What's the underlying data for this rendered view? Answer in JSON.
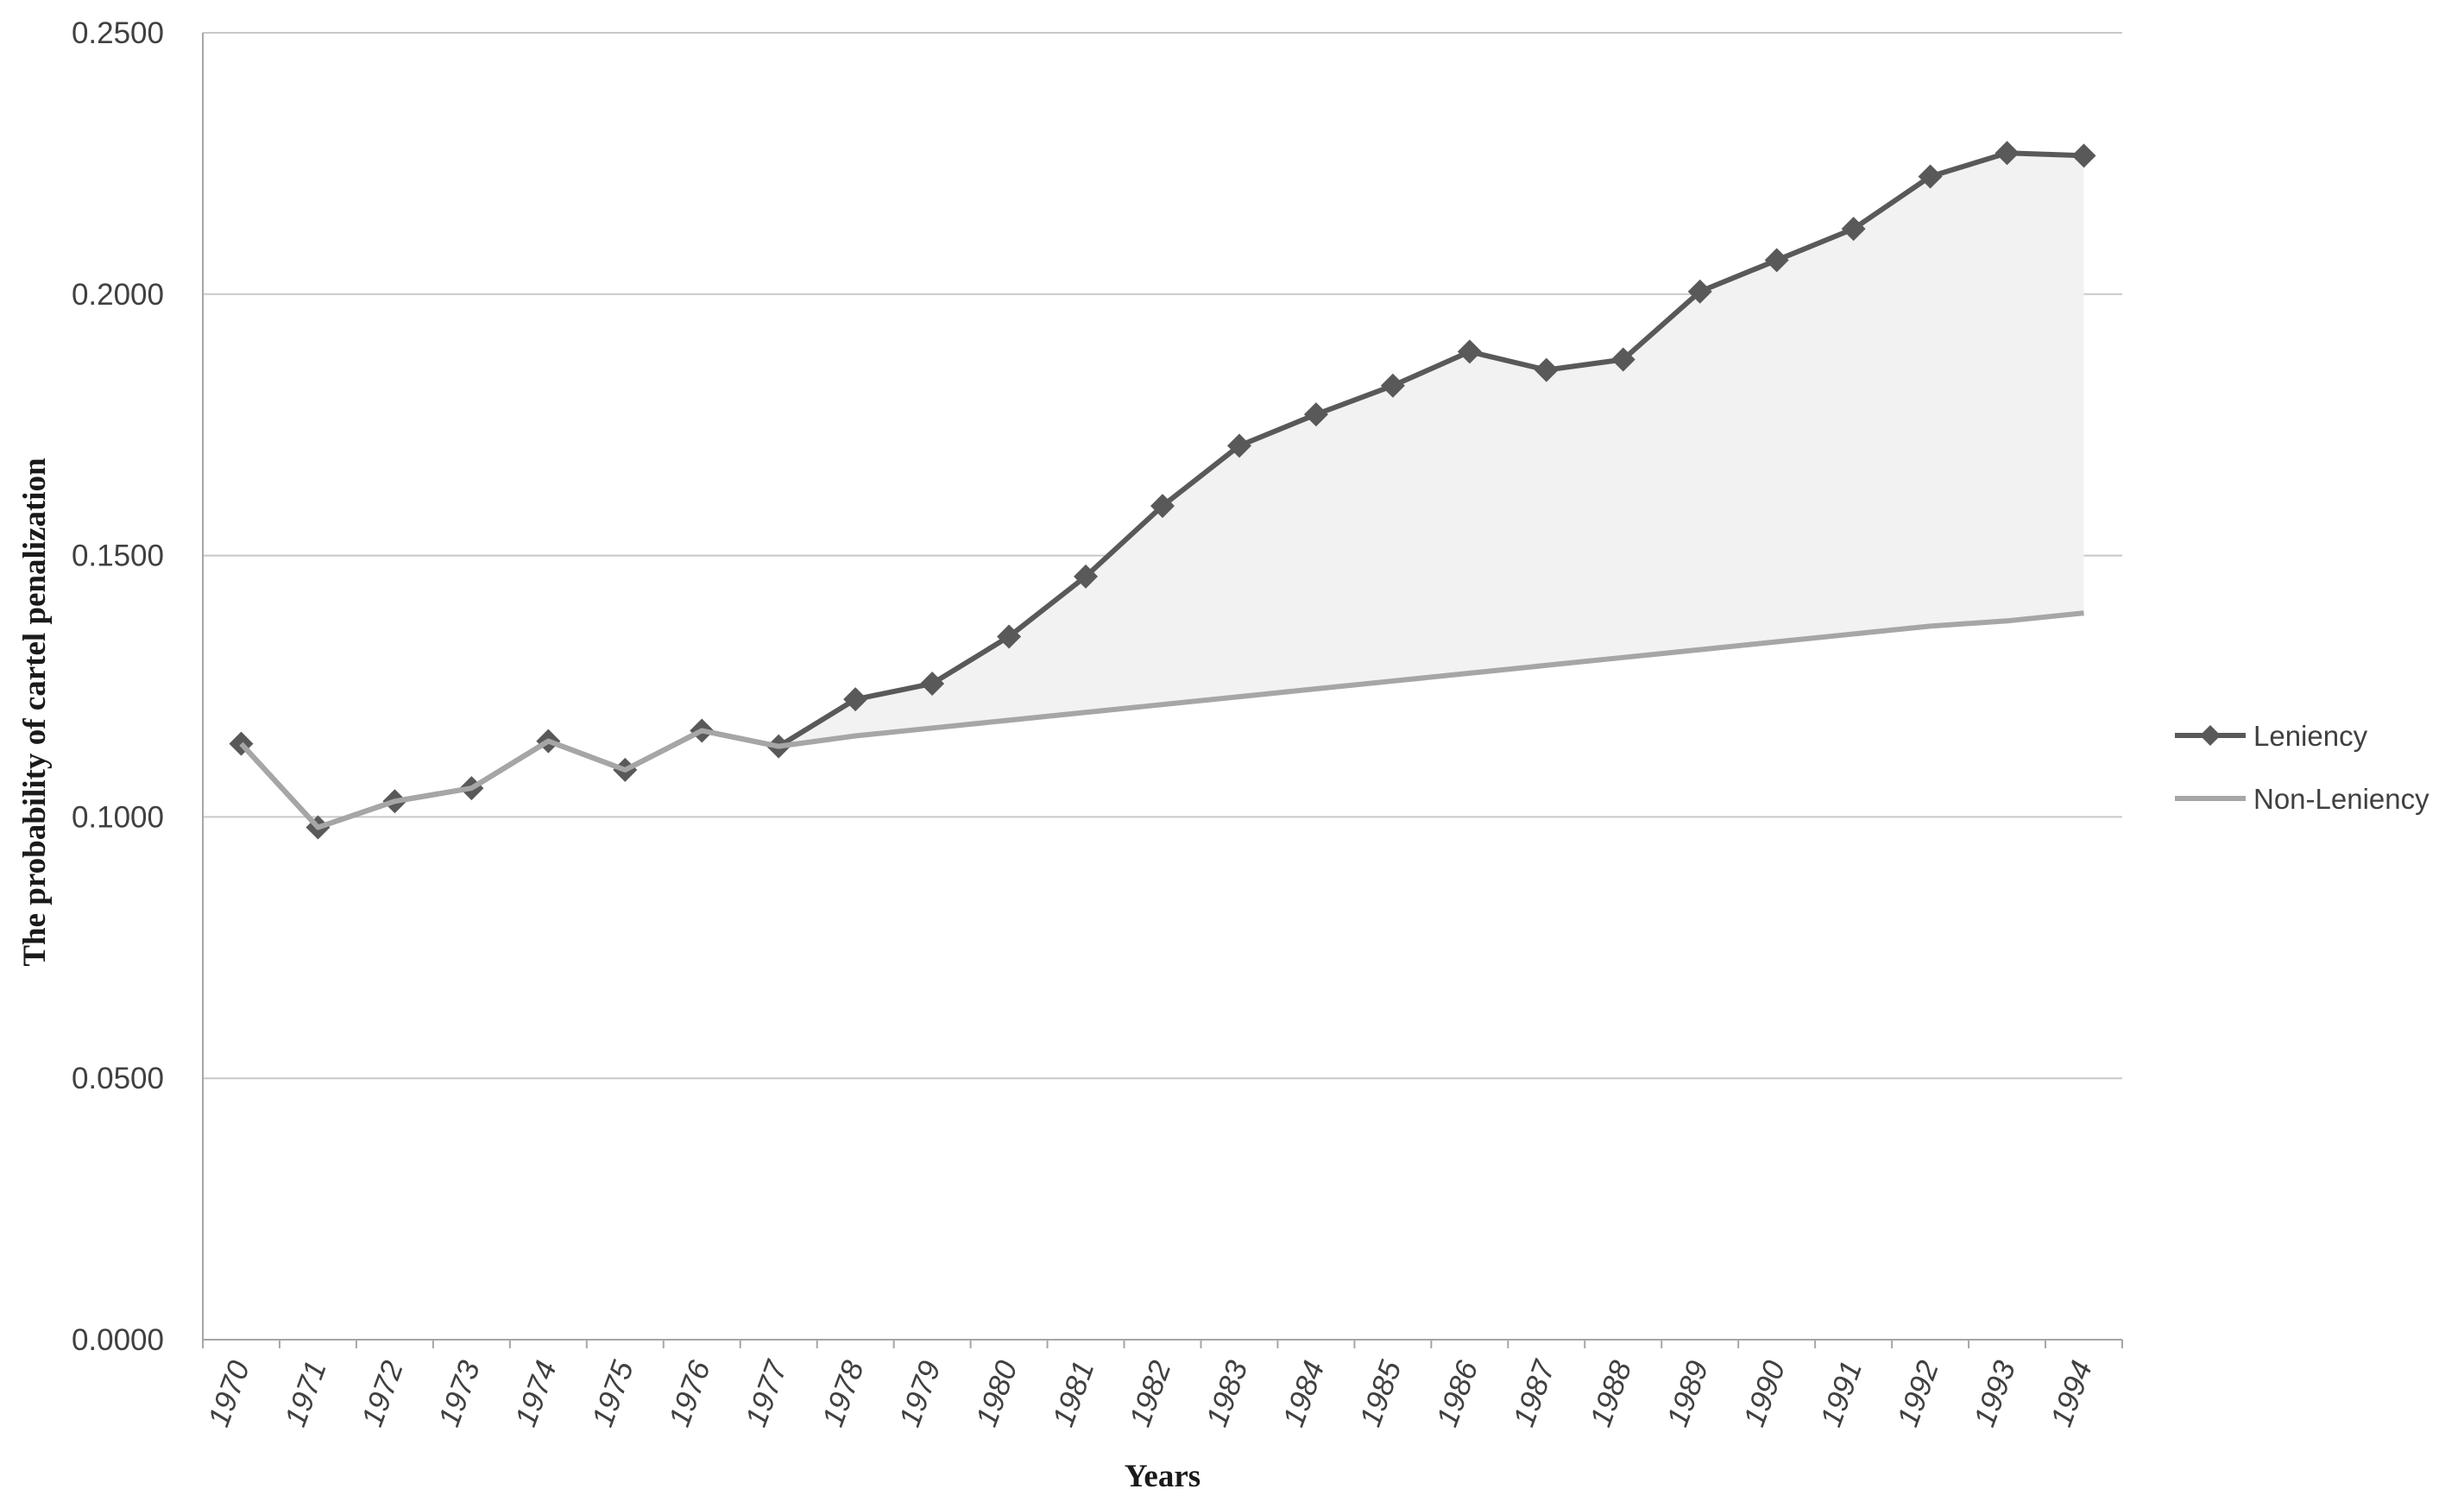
{
  "chart_data": {
    "type": "line",
    "title": "",
    "xlabel": "Years",
    "ylabel": "The probability  of cartel penalization",
    "ylim": [
      0.0,
      0.25
    ],
    "yticks": [
      "0.0000",
      "0.0500",
      "0.1000",
      "0.1500",
      "0.2000",
      "0.2500"
    ],
    "grid": "horizontal",
    "legend_position": "right",
    "categories": [
      "1970",
      "1971",
      "1972",
      "1973",
      "1974",
      "1975",
      "1976",
      "1977",
      "1978",
      "1979",
      "1980",
      "1981",
      "1982",
      "1983",
      "1984",
      "1985",
      "1986",
      "1987",
      "1988",
      "1989",
      "1990",
      "1991",
      "1992",
      "1993",
      "1994"
    ],
    "series": [
      {
        "name": "Leniency",
        "color": "#595959",
        "marker": "diamond",
        "values": [
          0.114,
          0.098,
          0.103,
          0.1055,
          0.1145,
          0.109,
          0.1165,
          0.1135,
          0.1225,
          0.1255,
          0.1345,
          0.146,
          0.1595,
          0.171,
          0.177,
          0.1825,
          0.189,
          0.1855,
          0.1875,
          0.2005,
          0.2065,
          0.2125,
          0.2225,
          0.227,
          0.2265
        ]
      },
      {
        "name": "Non-Leniency",
        "color": "#a6a6a6",
        "marker": "none",
        "values": [
          0.114,
          0.098,
          0.103,
          0.1055,
          0.1145,
          0.109,
          0.1165,
          0.1135,
          0.1155,
          0.117,
          0.1185,
          0.12,
          0.1215,
          0.123,
          0.1245,
          0.126,
          0.1275,
          0.129,
          0.1305,
          0.132,
          0.1335,
          0.135,
          0.1365,
          0.1375,
          0.139
        ]
      }
    ],
    "shaded_gap": {
      "between": [
        "Leniency",
        "Non-Leniency"
      ],
      "color": "#f2f2f2"
    }
  }
}
